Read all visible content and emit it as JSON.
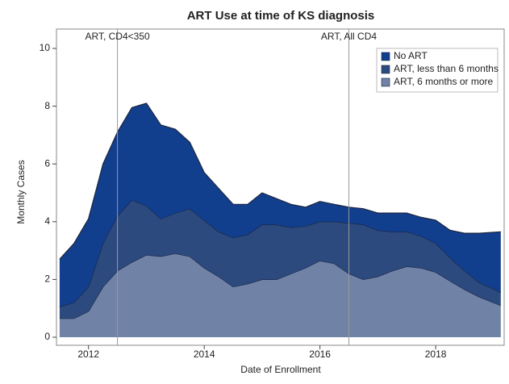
{
  "chart_data": {
    "type": "stacked_area",
    "title": "ART Use at time of KS diagnosis",
    "x_label": "Date of Enrollment",
    "y_label": "Monthly Cases",
    "x": [
      2011.5,
      2011.75,
      2012,
      2012.25,
      2012.5,
      2012.75,
      2013,
      2013.25,
      2013.5,
      2013.75,
      2014,
      2014.25,
      2014.5,
      2014.75,
      2015,
      2015.25,
      2015.5,
      2015.75,
      2016,
      2016.25,
      2016.5,
      2016.75,
      2017,
      2017.25,
      2017.5,
      2017.75,
      2018,
      2018.25,
      2018.5,
      2018.75,
      2019.125
    ],
    "series": [
      {
        "name": "No ART",
        "color": "#123e8e",
        "values": [
          1.65,
          2.05,
          2.35,
          2.75,
          2.9,
          3.2,
          3.55,
          3.25,
          2.9,
          2.3,
          1.65,
          1.5,
          1.15,
          1.05,
          1.1,
          0.9,
          0.8,
          0.65,
          0.7,
          0.6,
          0.55,
          0.55,
          0.6,
          0.65,
          0.65,
          0.65,
          0.8,
          0.95,
          1.3,
          1.7,
          2.1
        ]
      },
      {
        "name": "ART, less than 6 months",
        "color": "#2c4a7e",
        "values": [
          0.4,
          0.55,
          0.85,
          1.5,
          1.9,
          2.15,
          1.7,
          1.3,
          1.4,
          1.65,
          1.65,
          1.55,
          1.7,
          1.7,
          1.9,
          1.9,
          1.6,
          1.45,
          1.35,
          1.45,
          1.75,
          1.9,
          1.6,
          1.35,
          1.2,
          1.1,
          1.0,
          0.8,
          0.65,
          0.5,
          0.45
        ]
      },
      {
        "name": "ART, 6 months or more",
        "color": "#7082a6",
        "values": [
          0.65,
          0.65,
          0.9,
          1.75,
          2.3,
          2.6,
          2.85,
          2.8,
          2.9,
          2.8,
          2.4,
          2.1,
          1.75,
          1.85,
          2.0,
          2.0,
          2.2,
          2.4,
          2.65,
          2.55,
          2.2,
          2.0,
          2.1,
          2.3,
          2.45,
          2.4,
          2.25,
          1.95,
          1.65,
          1.4,
          1.1
        ]
      }
    ],
    "reference_lines": [
      {
        "x": 2012.5,
        "label": "ART, CD4<350"
      },
      {
        "x": 2016.5,
        "label": "ART, All CD4"
      }
    ],
    "xlim": [
      2011.46,
      2019.17
    ],
    "xticks": [
      2012,
      2014,
      2016,
      2018
    ],
    "ylim": [
      0,
      10
    ],
    "yticks": [
      0,
      2,
      4,
      6,
      8,
      10
    ],
    "legend": "top-right"
  }
}
